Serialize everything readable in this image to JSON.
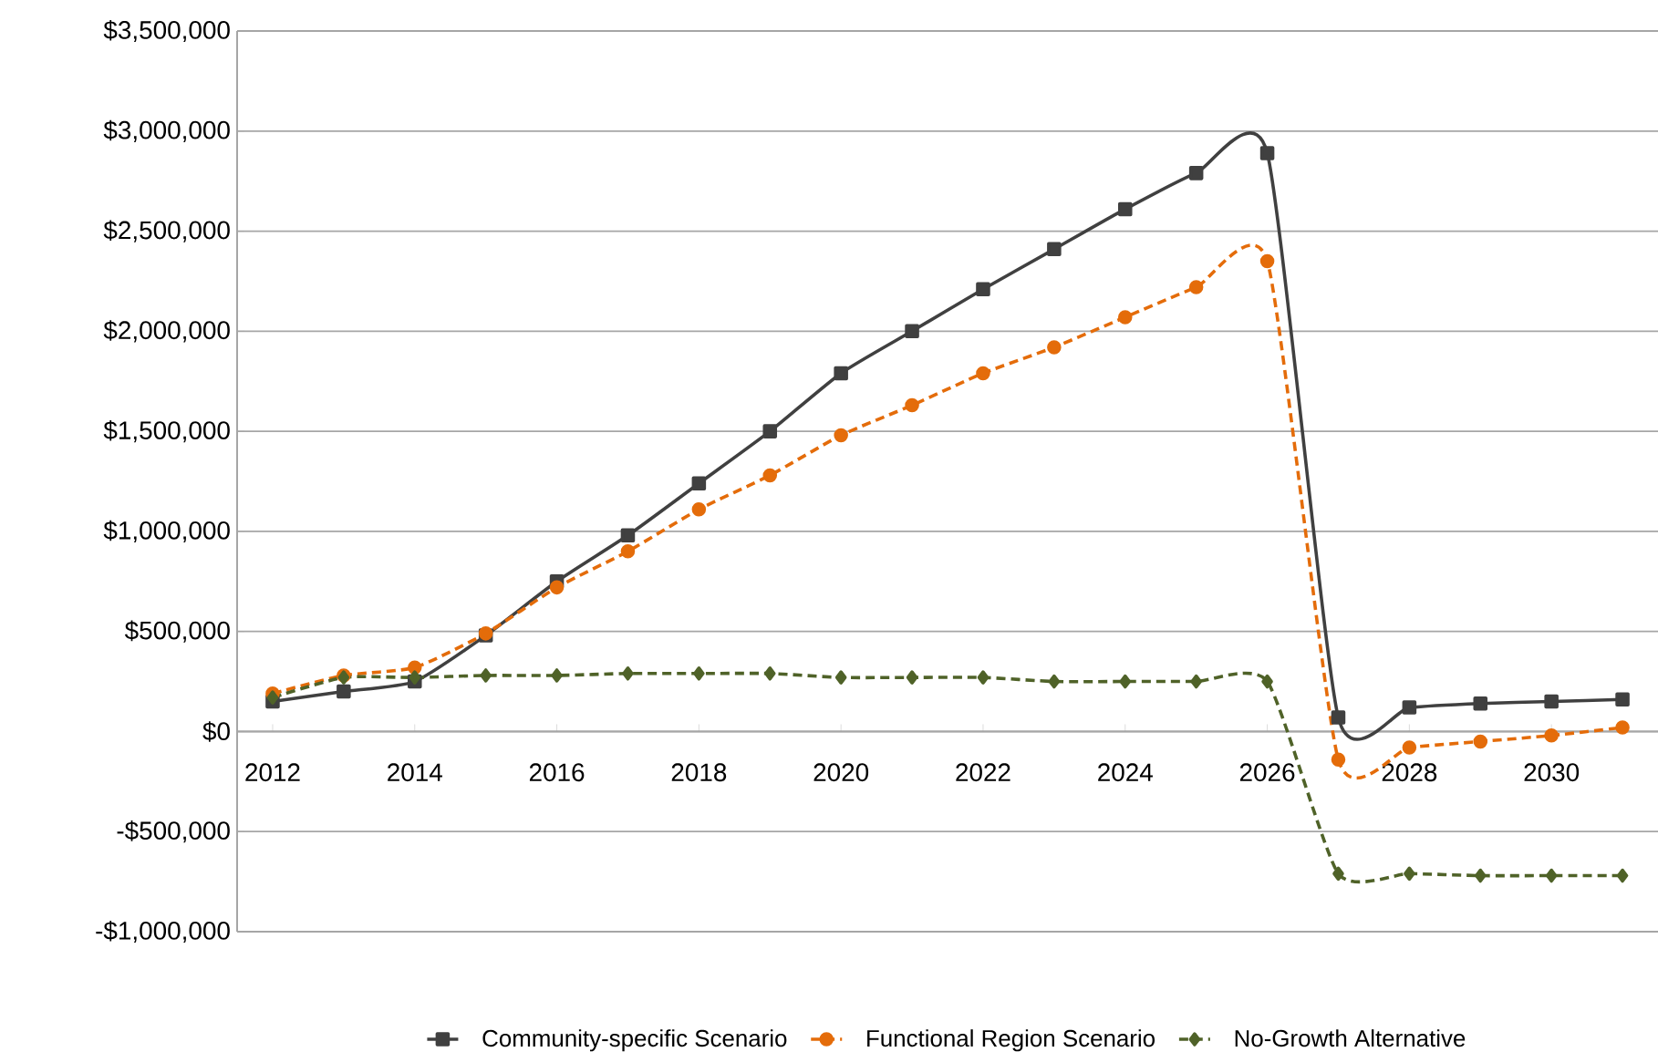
{
  "chart_data": {
    "type": "line",
    "x": [
      2012,
      2013,
      2014,
      2015,
      2016,
      2017,
      2018,
      2019,
      2020,
      2021,
      2022,
      2023,
      2024,
      2025,
      2026,
      2027,
      2028,
      2029,
      2030,
      2031
    ],
    "xlim": [
      2011.5,
      2031.5
    ],
    "xticks": [
      2012,
      2014,
      2016,
      2018,
      2020,
      2022,
      2024,
      2026,
      2028,
      2030
    ],
    "ylim": [
      -1000000,
      3500000
    ],
    "yticks": [
      {
        "value": -1000000,
        "label": "-$1,000,000"
      },
      {
        "value": -500000,
        "label": "-$500,000"
      },
      {
        "value": 0,
        "label": "$0"
      },
      {
        "value": 500000,
        "label": "$500,000"
      },
      {
        "value": 1000000,
        "label": "$1,000,000"
      },
      {
        "value": 1500000,
        "label": "$1,500,000"
      },
      {
        "value": 2000000,
        "label": "$2,000,000"
      },
      {
        "value": 2500000,
        "label": "$2,500,000"
      },
      {
        "value": 3000000,
        "label": "$3,000,000"
      },
      {
        "value": 3500000,
        "label": "$3,500,000"
      }
    ],
    "grid": "y",
    "legend": "bottom",
    "series": [
      {
        "name": "Community-specific Scenario",
        "color": "#404040",
        "marker": "square",
        "line_style": "solid",
        "values": [
          150000,
          200000,
          250000,
          480000,
          750000,
          980000,
          1240000,
          1500000,
          1790000,
          2000000,
          2210000,
          2410000,
          2610000,
          2790000,
          2890000,
          70000,
          120000,
          140000,
          150000,
          160000
        ]
      },
      {
        "name": "Functional Region Scenario",
        "color": "#e46c0a",
        "marker": "circle",
        "line_style": "dashed",
        "values": [
          190000,
          280000,
          320000,
          490000,
          720000,
          900000,
          1110000,
          1280000,
          1480000,
          1630000,
          1790000,
          1920000,
          2070000,
          2220000,
          2350000,
          -140000,
          -80000,
          -50000,
          -20000,
          20000
        ]
      },
      {
        "name": "No-Growth Alternative",
        "color": "#4f6228",
        "marker": "diamond",
        "line_style": "dashed",
        "values": [
          170000,
          270000,
          270000,
          280000,
          280000,
          290000,
          290000,
          290000,
          270000,
          270000,
          270000,
          250000,
          250000,
          250000,
          250000,
          -710000,
          -710000,
          -720000,
          -720000,
          -720000
        ]
      }
    ]
  }
}
